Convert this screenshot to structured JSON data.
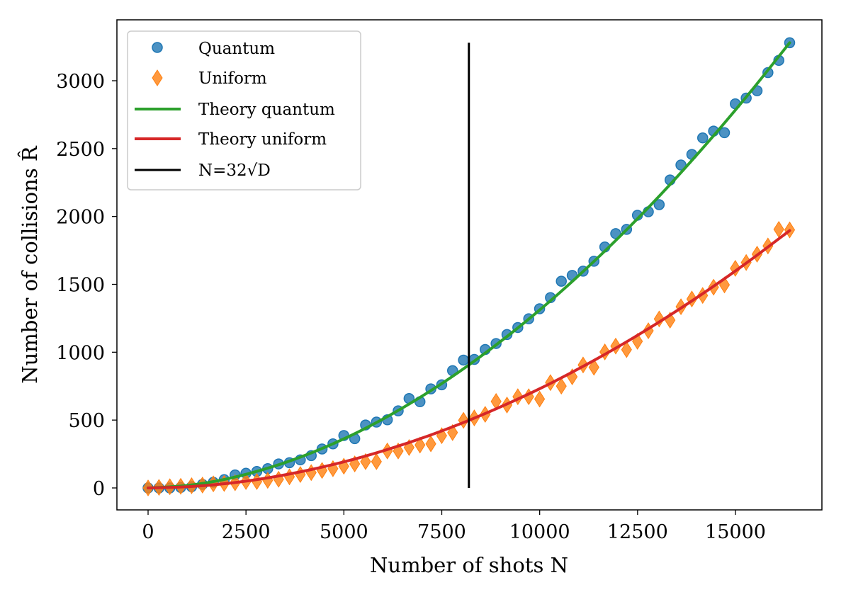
{
  "chart_data": {
    "type": "scatter",
    "xlabel": "Number of shots N",
    "ylabel": "Number of collisions R̂",
    "xlim": [
      -1600,
      18000
    ],
    "ylim": [
      -170,
      3440
    ],
    "x_ticks": [
      "0",
      "2500",
      "5000",
      "7500",
      "10000",
      "12500",
      "15000"
    ],
    "x_tick_values": [
      0,
      2500,
      5000,
      7500,
      10000,
      12500,
      15000
    ],
    "y_ticks": [
      "0",
      "500",
      "1000",
      "1500",
      "2000",
      "2500",
      "3000"
    ],
    "y_tick_values": [
      0,
      500,
      1000,
      1500,
      2000,
      2500,
      3000
    ],
    "grid": false,
    "legend_position": "top-left",
    "x": [
      0,
      278,
      555,
      833,
      1111,
      1389,
      1666,
      1944,
      2222,
      2499,
      2777,
      3055,
      3333,
      3610,
      3888,
      4166,
      4443,
      4721,
      4999,
      5277,
      5554,
      5832,
      6110,
      6387,
      6665,
      6943,
      7221,
      7498,
      7776,
      8054,
      8331,
      8609,
      8887,
      9165,
      9442,
      9720,
      9998,
      10275,
      10553,
      10831,
      11109,
      11386,
      11664,
      11942,
      12219,
      12497,
      12775,
      13052,
      13330,
      13608,
      13886,
      14163,
      14441,
      14719,
      14996,
      15274,
      15552,
      15829,
      16107,
      16384
    ],
    "series": [
      {
        "name": "Quantum",
        "kind": "scatter",
        "marker": "circle",
        "color": "#1f77b4",
        "values": [
          0,
          0,
          0,
          4,
          9,
          26,
          42,
          61,
          96,
          108,
          121,
          142,
          177,
          186,
          207,
          238,
          287,
          325,
          386,
          363,
          464,
          485,
          502,
          568,
          659,
          635,
          730,
          760,
          864,
          942,
          947,
          1020,
          1064,
          1130,
          1182,
          1246,
          1320,
          1402,
          1523,
          1566,
          1597,
          1670,
          1775,
          1874,
          1905,
          2009,
          2035,
          2087,
          2269,
          2379,
          2457,
          2579,
          2629,
          2617,
          2830,
          2872,
          2926,
          3060,
          3150,
          3280
        ]
      },
      {
        "name": "Uniform",
        "kind": "scatter",
        "marker": "diamond",
        "color": "#ff7f0e",
        "values": [
          0,
          4,
          9,
          12,
          16,
          21,
          30,
          33,
          38,
          47,
          47,
          56,
          64,
          82,
          99,
          113,
          129,
          142,
          160,
          177,
          194,
          194,
          272,
          272,
          298,
          316,
          325,
          385,
          408,
          498,
          516,
          542,
          637,
          611,
          672,
          672,
          655,
          776,
          750,
          819,
          906,
          889,
          1002,
          1045,
          1019,
          1080,
          1158,
          1245,
          1236,
          1335,
          1392,
          1418,
          1479,
          1496,
          1618,
          1661,
          1722,
          1783,
          1905,
          1901
        ]
      },
      {
        "name": "Theory quantum",
        "kind": "line",
        "color": "#2ca02c",
        "x": [
          0,
          1024,
          2048,
          3072,
          4096,
          5120,
          6144,
          7168,
          8192,
          9216,
          10240,
          11264,
          12288,
          13312,
          14336,
          15360,
          16384
        ],
        "values": [
          0,
          19,
          69,
          147,
          250,
          378,
          531,
          707,
          906,
          1127,
          1370,
          1636,
          1922,
          2230,
          2560,
          2910,
          3280
        ]
      },
      {
        "name": "Theory uniform",
        "kind": "line",
        "color": "#d62728",
        "x": [
          0,
          1024,
          2048,
          3072,
          4096,
          5120,
          6144,
          7168,
          8192,
          9216,
          10240,
          11264,
          12288,
          13312,
          14336,
          15360,
          16384
        ],
        "values": [
          0,
          9,
          34,
          75,
          131,
          201,
          286,
          385,
          498,
          625,
          765,
          920,
          1088,
          1270,
          1465,
          1674,
          1896
        ]
      },
      {
        "name": "N=32√D",
        "kind": "vline",
        "color": "#000000",
        "x_value": 8192,
        "y_range": [
          0,
          3280
        ]
      }
    ]
  }
}
